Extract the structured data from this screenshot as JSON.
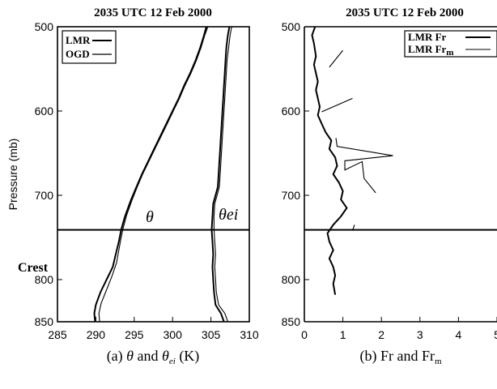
{
  "chart_data": [
    {
      "type": "line",
      "title": "2035 UTC 12 Feb 2000",
      "xlabel_prefix": "(a) ",
      "xlabel_theta": "θ",
      "xlabel_mid": " and ",
      "xlabel_sub": "ei",
      "xlabel_suffix": " (K)",
      "ylabel": "Pressure (mb)",
      "xlim": [
        285,
        310
      ],
      "ylim": [
        850,
        500
      ],
      "xticks": [
        "285",
        "290",
        "295",
        "300",
        "305",
        "310"
      ],
      "yticks": [
        "500",
        "600",
        "700",
        "800",
        "850"
      ],
      "crest_label": "Crest",
      "crest_pressure": 741,
      "legend": [
        "LMR",
        "OGD"
      ],
      "annotations": {
        "theta": "θ",
        "theta_ei": "θei"
      },
      "series": [
        {
          "name": "LMR",
          "group": "theta",
          "points": [
            [
              289.9,
              850
            ],
            [
              289.8,
              840
            ],
            [
              290.0,
              830
            ],
            [
              290.6,
              815
            ],
            [
              291.4,
              800
            ],
            [
              292.2,
              785
            ],
            [
              292.6,
              770
            ],
            [
              293.0,
              755
            ],
            [
              293.3,
              741
            ],
            [
              293.8,
              725
            ],
            [
              294.6,
              705
            ],
            [
              295.3,
              690
            ],
            [
              296.0,
              675
            ],
            [
              296.8,
              660
            ],
            [
              297.6,
              645
            ],
            [
              298.4,
              630
            ],
            [
              299.2,
              615
            ],
            [
              300.0,
              600
            ],
            [
              300.8,
              585
            ],
            [
              301.5,
              570
            ],
            [
              302.3,
              555
            ],
            [
              303.0,
              540
            ],
            [
              303.6,
              525
            ],
            [
              304.1,
              510
            ],
            [
              304.4,
              500
            ]
          ]
        },
        {
          "name": "OGD",
          "group": "theta",
          "points": [
            [
              290.5,
              850
            ],
            [
              290.4,
              840
            ],
            [
              290.7,
              828
            ],
            [
              291.4,
              812
            ],
            [
              292.1,
              796
            ],
            [
              292.7,
              780
            ],
            [
              293.0,
              765
            ],
            [
              293.3,
              750
            ],
            [
              293.5,
              741
            ],
            [
              294.0,
              724
            ],
            [
              294.7,
              706
            ],
            [
              295.4,
              690
            ],
            [
              296.1,
              675
            ],
            [
              296.9,
              660
            ],
            [
              297.7,
              645
            ],
            [
              298.5,
              630
            ],
            [
              299.3,
              615
            ],
            [
              300.1,
              600
            ],
            [
              300.9,
              585
            ],
            [
              301.6,
              570
            ],
            [
              302.4,
              555
            ],
            [
              303.1,
              540
            ],
            [
              303.7,
              525
            ],
            [
              304.2,
              510
            ],
            [
              304.6,
              500
            ]
          ]
        },
        {
          "name": "LMR",
          "group": "theta_ei",
          "points": [
            [
              306.7,
              850
            ],
            [
              306.3,
              840
            ],
            [
              305.6,
              830
            ],
            [
              305.4,
              815
            ],
            [
              305.3,
              800
            ],
            [
              305.2,
              785
            ],
            [
              305.3,
              770
            ],
            [
              305.2,
              755
            ],
            [
              305.1,
              741
            ],
            [
              305.2,
              725
            ],
            [
              305.3,
              710
            ],
            [
              305.6,
              700
            ],
            [
              305.9,
              690
            ],
            [
              306.0,
              675
            ],
            [
              306.1,
              660
            ],
            [
              306.2,
              645
            ],
            [
              306.3,
              630
            ],
            [
              306.4,
              615
            ],
            [
              306.5,
              600
            ],
            [
              306.6,
              585
            ],
            [
              306.7,
              570
            ],
            [
              306.8,
              555
            ],
            [
              306.9,
              540
            ],
            [
              307.0,
              525
            ],
            [
              307.2,
              510
            ],
            [
              307.4,
              500
            ]
          ]
        },
        {
          "name": "OGD",
          "group": "theta_ei",
          "points": [
            [
              307.2,
              850
            ],
            [
              306.8,
              840
            ],
            [
              306.0,
              830
            ],
            [
              305.7,
              815
            ],
            [
              305.6,
              800
            ],
            [
              305.5,
              785
            ],
            [
              305.6,
              770
            ],
            [
              305.5,
              755
            ],
            [
              305.4,
              741
            ],
            [
              305.4,
              725
            ],
            [
              305.5,
              710
            ],
            [
              305.8,
              700
            ],
            [
              306.1,
              690
            ],
            [
              306.2,
              675
            ],
            [
              306.3,
              660
            ],
            [
              306.4,
              645
            ],
            [
              306.5,
              630
            ],
            [
              306.6,
              615
            ],
            [
              306.7,
              600
            ],
            [
              306.8,
              585
            ],
            [
              306.9,
              570
            ],
            [
              307.0,
              555
            ],
            [
              307.1,
              540
            ],
            [
              307.3,
              525
            ],
            [
              307.5,
              510
            ],
            [
              307.7,
              500
            ]
          ]
        }
      ]
    },
    {
      "type": "line",
      "title": "2035 UTC 12 Feb 2000",
      "xlabel_prefix": "(b) Fr and Fr",
      "xlabel_sub": "m",
      "xlim": [
        0,
        5
      ],
      "ylim": [
        850,
        500
      ],
      "xticks": [
        "0",
        "1",
        "2",
        "3",
        "4",
        "5"
      ],
      "yticks": [
        "500",
        "600",
        "700",
        "800",
        "850"
      ],
      "crest_pressure": 741,
      "legend": [
        "LMR Fr",
        "LMR Fr"
      ],
      "legend_sub": [
        "",
        "m"
      ],
      "series": [
        {
          "name": "LMR Fr",
          "points": [
            [
              0.28,
              500
            ],
            [
              0.2,
              510
            ],
            [
              0.25,
              520
            ],
            [
              0.3,
              535
            ],
            [
              0.25,
              545
            ],
            [
              0.3,
              555
            ],
            [
              0.35,
              565
            ],
            [
              0.3,
              575
            ],
            [
              0.35,
              585
            ],
            [
              0.4,
              595
            ],
            [
              0.35,
              605
            ],
            [
              0.45,
              615
            ],
            [
              0.55,
              625
            ],
            [
              0.7,
              635
            ],
            [
              0.65,
              645
            ],
            [
              0.8,
              655
            ],
            [
              0.85,
              665
            ],
            [
              0.75,
              675
            ],
            [
              0.9,
              685
            ],
            [
              1.0,
              695
            ],
            [
              0.95,
              705
            ],
            [
              1.1,
              715
            ],
            [
              0.95,
              725
            ],
            [
              0.75,
              735
            ],
            [
              0.6,
              745
            ],
            [
              0.65,
              755
            ],
            [
              0.75,
              765
            ],
            [
              0.65,
              775
            ],
            [
              0.75,
              785
            ],
            [
              0.8,
              795
            ],
            [
              0.75,
              805
            ],
            [
              0.8,
              818
            ]
          ]
        },
        {
          "name": "LMR Fr",
          "subname": "m",
          "segments": [
            [
              [
                0.65,
                548
              ],
              [
                1.0,
                528
              ]
            ],
            [
              [
                0.45,
                601
              ],
              [
                1.25,
                585
              ]
            ],
            [
              [
                0.82,
                632
              ],
              [
                0.85,
                642
              ],
              [
                2.3,
                653
              ],
              [
                1.05,
                659
              ],
              [
                1.05,
                670
              ],
              [
                1.5,
                660
              ],
              [
                1.55,
                680
              ],
              [
                1.85,
                697
              ]
            ],
            [
              [
                1.3,
                735
              ],
              [
                1.25,
                742
              ]
            ]
          ]
        }
      ]
    }
  ]
}
